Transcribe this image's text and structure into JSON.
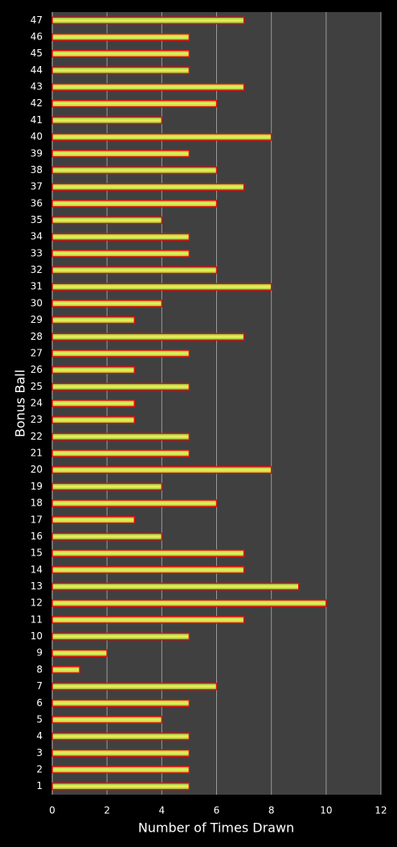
{
  "chart_data": {
    "type": "bar",
    "orientation": "horizontal",
    "x_label": "Number of Times Drawn",
    "y_label": "Bonus Ball",
    "categories": [
      "1",
      "2",
      "3",
      "4",
      "5",
      "6",
      "7",
      "8",
      "9",
      "10",
      "11",
      "12",
      "13",
      "14",
      "15",
      "16",
      "17",
      "18",
      "19",
      "20",
      "21",
      "22",
      "23",
      "24",
      "25",
      "26",
      "27",
      "28",
      "29",
      "30",
      "31",
      "32",
      "33",
      "34",
      "35",
      "36",
      "37",
      "38",
      "39",
      "40",
      "41",
      "42",
      "43",
      "44",
      "45",
      "46",
      "47"
    ],
    "values": [
      5,
      5,
      5,
      5,
      4,
      5,
      6,
      1,
      2,
      5,
      7,
      10,
      9,
      7,
      7,
      4,
      3,
      6,
      4,
      8,
      5,
      5,
      3,
      3,
      5,
      3,
      5,
      7,
      3,
      4,
      8,
      6,
      5,
      5,
      4,
      6,
      7,
      6,
      5,
      8,
      4,
      6,
      7,
      5,
      5,
      5,
      7
    ],
    "color": "#c8d83a",
    "xlim": [
      0,
      12
    ],
    "xticks": [
      0,
      2,
      4,
      6,
      8,
      10,
      12
    ],
    "grid": true
  }
}
